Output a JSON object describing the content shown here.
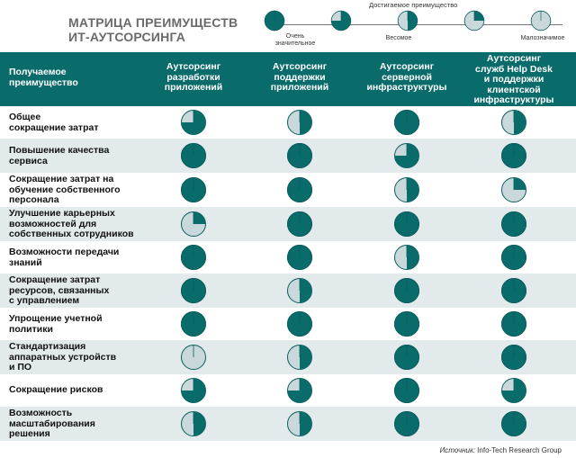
{
  "title": {
    "line1": "МАТРИЦА ПРЕИМУЩЕСТВ",
    "line2": "ИТ-АУТСОРСИНГА"
  },
  "legend": {
    "caption": "Достигаемое преимущество",
    "levels": [
      {
        "fill": 1.0,
        "label": ""
      },
      {
        "fill": 0.75,
        "label": ""
      },
      {
        "fill": 0.5,
        "label": ""
      },
      {
        "fill": 0.25,
        "label": ""
      },
      {
        "fill": 0.0,
        "label": ""
      }
    ],
    "labels": [
      {
        "line1": "Очень",
        "line2": "значительное"
      },
      {
        "line1": "Весомое",
        "line2": ""
      },
      {
        "line1": "Малозначимое",
        "line2": ""
      }
    ]
  },
  "colors": {
    "header_bg": "#0a6b6b",
    "ball_fill": "#0a6b6b",
    "ball_empty": "#c9d8da",
    "row_shade": "#e2eaec"
  },
  "table": {
    "header": {
      "first": [
        "Получаемое",
        "преимущество"
      ],
      "columns": [
        [
          "Аутсорсинг",
          "разработки",
          "приложений"
        ],
        [
          "Аутсорсинг",
          "поддержки",
          "приложений"
        ],
        [
          "Аутсорсинг",
          "серверной",
          "инфраструктуры"
        ],
        [
          "Аутсорсинг",
          "служб Help Desk",
          "и поддержки",
          "клиентской",
          "инфраструктуры"
        ]
      ]
    },
    "rows": [
      {
        "label": [
          "Общее",
          "сокращение затрат"
        ],
        "values": [
          0.75,
          0.5,
          1.0,
          0.5
        ]
      },
      {
        "label": [
          "Повышение качества",
          "сервиса"
        ],
        "values": [
          1.0,
          1.0,
          0.75,
          1.0
        ]
      },
      {
        "label": [
          "Сокращение затрат на",
          "обучение собственного",
          "персонала"
        ],
        "values": [
          1.0,
          1.0,
          0.5,
          0.25
        ]
      },
      {
        "label": [
          "Улучшение карьерных",
          "возможностей для",
          "собственных сотрудников"
        ],
        "values": [
          0.25,
          1.0,
          1.0,
          1.0
        ]
      },
      {
        "label": [
          "Возможности передачи",
          "знаний"
        ],
        "values": [
          1.0,
          1.0,
          0.5,
          1.0
        ]
      },
      {
        "label": [
          "Сокращение затрат",
          "ресурсов, связанных",
          "с управлением"
        ],
        "values": [
          1.0,
          0.5,
          1.0,
          1.0
        ]
      },
      {
        "label": [
          "Упрощение учетной",
          "политики"
        ],
        "values": [
          1.0,
          1.0,
          1.0,
          1.0
        ]
      },
      {
        "label": [
          "Стандартизация",
          "аппаратных устройств",
          "и ПО"
        ],
        "values": [
          0.0,
          0.5,
          1.0,
          1.0
        ]
      },
      {
        "label": [
          "Сокращение рисков"
        ],
        "values": [
          0.75,
          0.75,
          1.0,
          0.75
        ]
      },
      {
        "label": [
          "Возможность",
          "масштабирования",
          "решения"
        ],
        "values": [
          0.5,
          0.5,
          1.0,
          1.0
        ]
      }
    ]
  },
  "source": {
    "prefix": "Источник:",
    "text": " Info-Tech Research Group"
  }
}
